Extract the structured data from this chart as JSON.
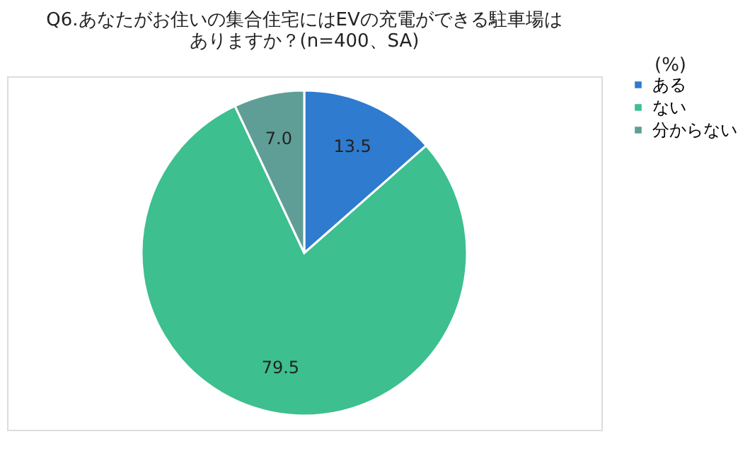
{
  "chart_data": {
    "type": "pie",
    "title": [
      "Q6.あなたがお住いの集合住宅にはEVの充電ができる駐車場は",
      "ありますか？(n=400、SA)"
    ],
    "categories": [
      "ある",
      "ない",
      "分からない"
    ],
    "values": [
      13.5,
      79.5,
      7.0
    ],
    "colors": [
      "#2e7bcf",
      "#3dbf8f",
      "#5f9e96"
    ],
    "value_labels": [
      "13.5",
      "79.5",
      "7.0"
    ],
    "annotations": [
      "(%)"
    ],
    "legend": "right"
  }
}
